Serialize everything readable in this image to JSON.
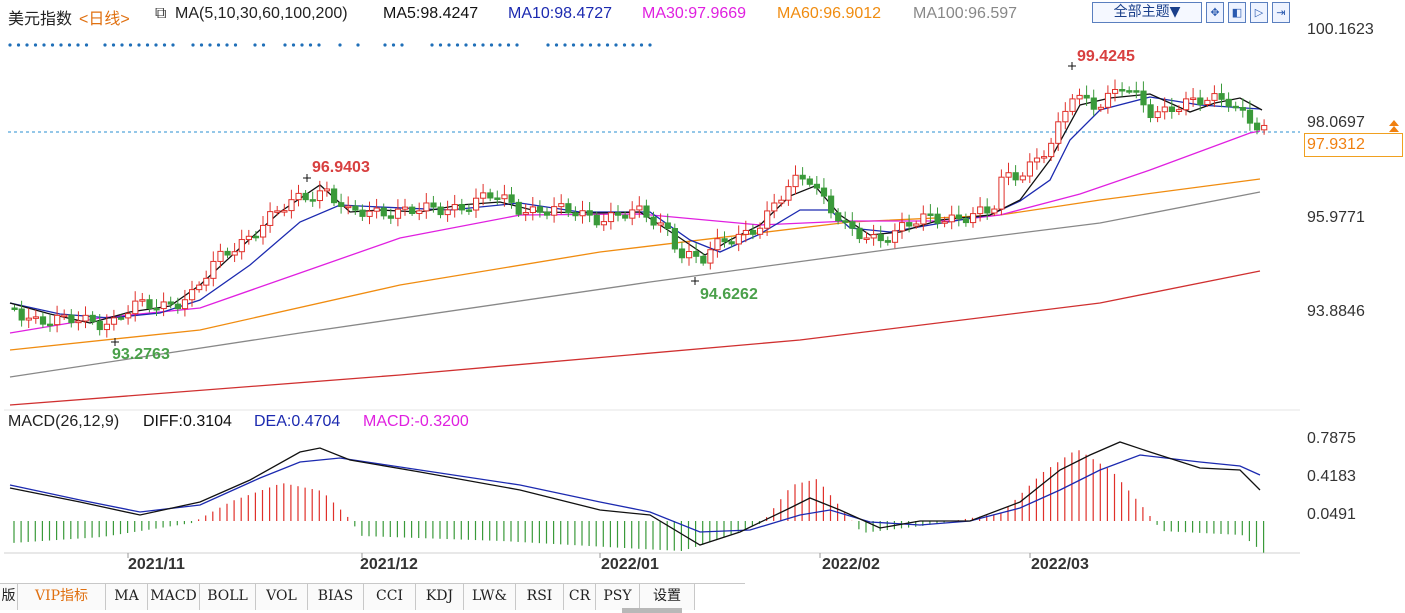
{
  "header": {
    "title": "美元指数",
    "period": "<日线>",
    "ma_label": "MA(5,10,30,60,100,200)",
    "ma5": "MA5:98.4247",
    "ma10": "MA10:98.4727",
    "ma30": "MA30:97.9669",
    "ma60": "MA60:96.9012",
    "ma100": "MA100:96.597",
    "theme_button": "全部主题▼",
    "tool_icons": [
      "zoom-icon",
      "prev-icon",
      "next-icon",
      "end-icon"
    ]
  },
  "price_axis": [
    "100.1623",
    "98.0697",
    "95.9771",
    "93.8846"
  ],
  "current_price": "97.9312",
  "annotations": {
    "high_1": "96.9403",
    "high_2": "99.4245",
    "low_1": "93.2763",
    "low_2": "94.6262"
  },
  "macd": {
    "label": "MACD(26,12,9)",
    "diff": "DIFF:0.3104",
    "dea": "DEA:0.4704",
    "macd": "MACD:-0.3200",
    "axis": [
      "0.7875",
      "0.4183",
      "0.0491"
    ]
  },
  "x_axis": [
    "2021/11",
    "2021/12",
    "2022/01",
    "2022/02",
    "2022/03"
  ],
  "tabs": [
    "版",
    "VIP指标",
    "MA",
    "MACD",
    "BOLL",
    "VOL",
    "BIAS",
    "CCI",
    "KDJ",
    "LW&",
    "RSI",
    "CR",
    "PSY",
    "设置"
  ],
  "colors": {
    "up": "#e0302a",
    "down": "#3a9a3a",
    "ma5": "#111111",
    "ma10": "#1c2ab0",
    "ma30": "#e020e0",
    "ma60": "#f08c10",
    "ma100": "#888888",
    "ma200": "#d03030",
    "dea": "#1c2ab0",
    "diff": "#111111"
  }
}
